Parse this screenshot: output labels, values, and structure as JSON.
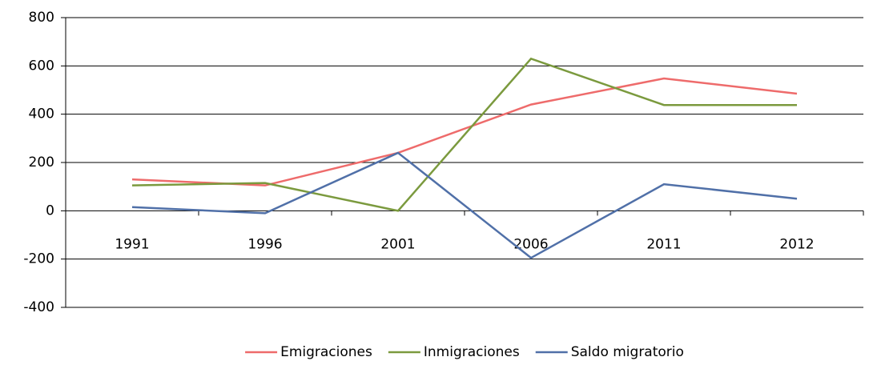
{
  "chart_data": {
    "type": "line",
    "categories": [
      "1991",
      "1996",
      "2001",
      "2006",
      "2011",
      "2012"
    ],
    "series": [
      {
        "name": "Emigraciones",
        "color": "#ee6b6b",
        "values": [
          130,
          105,
          240,
          440,
          548,
          485
        ]
      },
      {
        "name": "Inmigraciones",
        "color": "#7b9a3e",
        "values": [
          105,
          115,
          0,
          630,
          438,
          438
        ]
      },
      {
        "name": "Saldo migratorio",
        "color": "#5070a8",
        "values": [
          15,
          -10,
          240,
          -195,
          110,
          50
        ]
      }
    ],
    "ylim": [
      -400,
      800
    ],
    "yticks": [
      -400,
      -200,
      0,
      200,
      400,
      600,
      800
    ],
    "grid": true,
    "legend": "bottom"
  }
}
